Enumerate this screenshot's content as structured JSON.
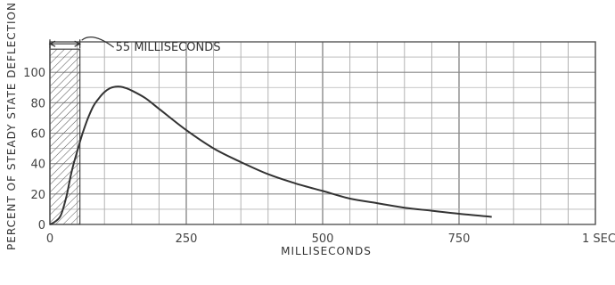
{
  "chart_data": {
    "type": "line",
    "xlabel": "MILLISECONDS",
    "ylabel": "PERCENT OF STEADY STATE DEFLECTION",
    "xlim": [
      0,
      1000
    ],
    "ylim": [
      0,
      120
    ],
    "xticks": [
      0,
      250,
      500,
      750,
      1000
    ],
    "xtick_labels": [
      "0",
      "250",
      "500",
      "750",
      "1 SEC"
    ],
    "yticks": [
      0,
      20,
      40,
      60,
      80,
      100
    ],
    "ytick_labels": [
      "0",
      "20",
      "40",
      "60",
      "80",
      "100"
    ],
    "grid": true,
    "annotation": {
      "text": "55 MILLISECONDS",
      "shaded_region_x": [
        0,
        55
      ]
    },
    "series": [
      {
        "x": [
          0,
          10,
          20,
          30,
          40,
          50,
          60,
          70,
          80,
          90,
          100,
          110,
          120,
          130,
          140,
          150,
          175,
          200,
          250,
          300,
          350,
          400,
          450,
          500,
          550,
          600,
          650,
          700,
          750,
          810
        ],
        "y": [
          0,
          2,
          6,
          18,
          35,
          48,
          60,
          70,
          78,
          83,
          87,
          89.5,
          90.5,
          90.5,
          89.5,
          88,
          83,
          76,
          62,
          50,
          41,
          33,
          27,
          22,
          17,
          14,
          11,
          9,
          7,
          5
        ]
      }
    ]
  }
}
